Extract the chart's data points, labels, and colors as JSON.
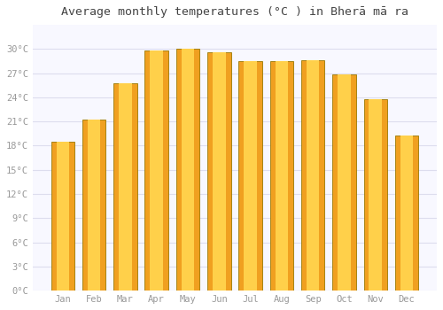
{
  "title": "Average monthly temperatures (°C ) in Bherā mā ra",
  "months": [
    "Jan",
    "Feb",
    "Mar",
    "Apr",
    "May",
    "Jun",
    "Jul",
    "Aug",
    "Sep",
    "Oct",
    "Nov",
    "Dec"
  ],
  "values": [
    18.5,
    21.2,
    25.8,
    29.8,
    30.0,
    29.6,
    28.5,
    28.5,
    28.6,
    26.8,
    23.8,
    19.3
  ],
  "bar_color_center": "#FFD04A",
  "bar_color_edge": "#F0A020",
  "bar_border_color": "#9A7800",
  "background_color": "#FFFFFF",
  "plot_bg_color": "#F8F8FF",
  "grid_color": "#DDDDEE",
  "tick_label_color": "#999999",
  "title_color": "#444444",
  "ylim": [
    0,
    33
  ],
  "yticks": [
    0,
    3,
    6,
    9,
    12,
    15,
    18,
    21,
    24,
    27,
    30
  ],
  "ylabel_suffix": "°C",
  "bar_width": 0.75
}
